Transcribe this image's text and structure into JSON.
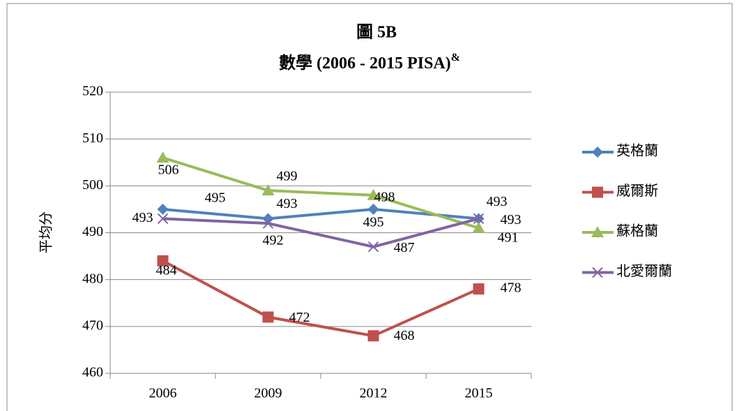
{
  "chart_data": {
    "type": "line",
    "title": "圖 5B",
    "subtitle": "數學 (2006 - 2015 PISA)",
    "subtitle_superscript": "&",
    "y_label": "平均分",
    "categories": [
      "2006",
      "2009",
      "2012",
      "2015"
    ],
    "series": [
      {
        "name": "英格蘭",
        "color": "#4f81bd",
        "marker": "diamond",
        "values": [
          495,
          493,
          495,
          493
        ]
      },
      {
        "name": "威爾斯",
        "color": "#c0504d",
        "marker": "square",
        "values": [
          484,
          472,
          468,
          478
        ]
      },
      {
        "name": "蘇格蘭",
        "color": "#9bbb59",
        "marker": "triangle",
        "values": [
          506,
          499,
          498,
          491
        ]
      },
      {
        "name": "北愛爾蘭",
        "color": "#8064a2",
        "marker": "x",
        "values": [
          493,
          492,
          487,
          493
        ]
      }
    ],
    "ylim": [
      460,
      520
    ],
    "yticks": [
      460,
      470,
      480,
      490,
      500,
      510,
      520
    ],
    "grid": true,
    "legend": "right"
  }
}
